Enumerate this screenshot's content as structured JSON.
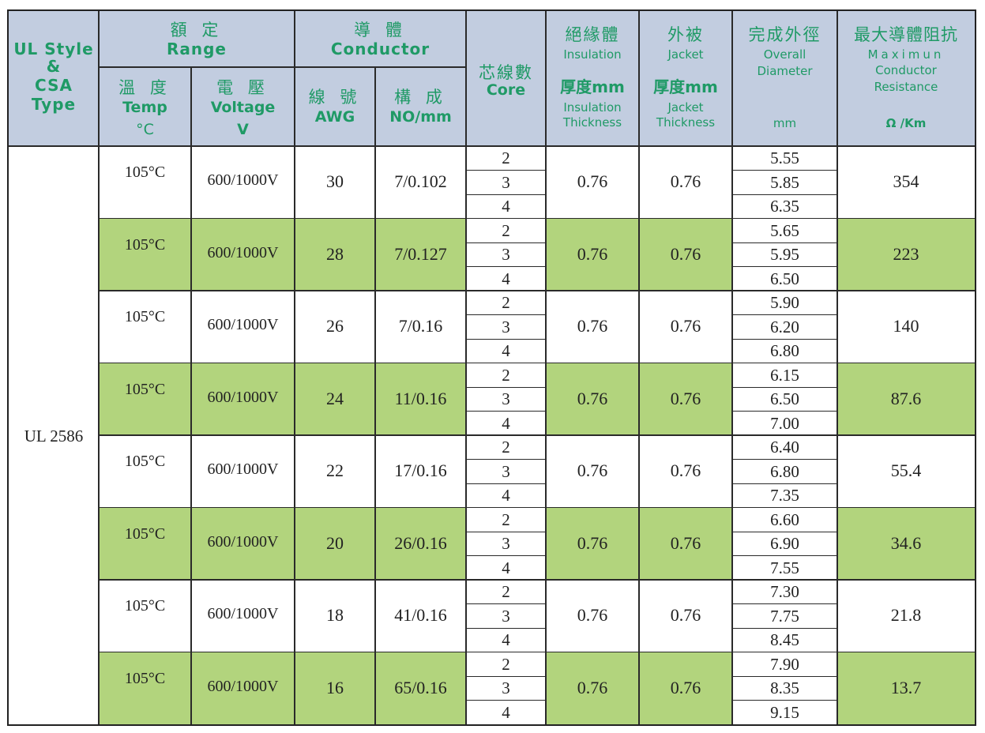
{
  "header": {
    "style_type": [
      "UL Style",
      "&",
      "CSA",
      "Type"
    ],
    "range": {
      "cn": "額 定",
      "en": "Range"
    },
    "conductor": {
      "cn": "導 體",
      "en": "Conductor"
    },
    "temp": {
      "cn": "溫 度",
      "en": "Temp",
      "unit": "°C"
    },
    "voltage": {
      "cn": "電 壓",
      "en": "Voltage",
      "unit": "V"
    },
    "awg": {
      "cn": "線 號",
      "en": "AWG"
    },
    "construction": {
      "cn": "構 成",
      "en": "NO/mm"
    },
    "core": {
      "cn": "芯線數",
      "en": "Core"
    },
    "insulation": {
      "cn": "絕緣體",
      "en": "Insulation",
      "thick_cn": "厚度mm",
      "thick_en_1": "Insulation",
      "thick_en_2": "Thickness"
    },
    "jacket": {
      "cn": "外被",
      "en": "Jacket",
      "thick_cn": "厚度mm",
      "thick_en_1": "Jacket",
      "thick_en_2": "Thickness"
    },
    "diameter": {
      "cn": "完成外徑",
      "en_1": "Overall",
      "en_2": "Diameter",
      "unit": "mm"
    },
    "resistance": {
      "cn": "最大導體阻抗",
      "en_1": "Maximun",
      "en_2": "Conductor",
      "en_3": "Resistance",
      "unit": "Ω /Km"
    }
  },
  "style": "UL 2586",
  "rows": [
    {
      "temp": "105°C",
      "voltage": "600/1000V",
      "awg": "30",
      "construction": "7/0.102",
      "cores": [
        "2",
        "3",
        "4"
      ],
      "insulation": "0.76",
      "jacket": "0.76",
      "diameters": [
        "5.55",
        "5.85",
        "6.35"
      ],
      "resistance": "354"
    },
    {
      "temp": "105°C",
      "voltage": "600/1000V",
      "awg": "28",
      "construction": "7/0.127",
      "cores": [
        "2",
        "3",
        "4"
      ],
      "insulation": "0.76",
      "jacket": "0.76",
      "diameters": [
        "5.65",
        "5.95",
        "6.50"
      ],
      "resistance": "223"
    },
    {
      "temp": "105°C",
      "voltage": "600/1000V",
      "awg": "26",
      "construction": "7/0.16",
      "cores": [
        "2",
        "3",
        "4"
      ],
      "insulation": "0.76",
      "jacket": "0.76",
      "diameters": [
        "5.90",
        "6.20",
        "6.80"
      ],
      "resistance": "140"
    },
    {
      "temp": "105°C",
      "voltage": "600/1000V",
      "awg": "24",
      "construction": "11/0.16",
      "cores": [
        "2",
        "3",
        "4"
      ],
      "insulation": "0.76",
      "jacket": "0.76",
      "diameters": [
        "6.15",
        "6.50",
        "7.00"
      ],
      "resistance": "87.6"
    },
    {
      "temp": "105°C",
      "voltage": "600/1000V",
      "awg": "22",
      "construction": "17/0.16",
      "cores": [
        "2",
        "3",
        "4"
      ],
      "insulation": "0.76",
      "jacket": "0.76",
      "diameters": [
        "6.40",
        "6.80",
        "7.35"
      ],
      "resistance": "55.4"
    },
    {
      "temp": "105°C",
      "voltage": "600/1000V",
      "awg": "20",
      "construction": "26/0.16",
      "cores": [
        "2",
        "3",
        "4"
      ],
      "insulation": "0.76",
      "jacket": "0.76",
      "diameters": [
        "6.60",
        "6.90",
        "7.55"
      ],
      "resistance": "34.6"
    },
    {
      "temp": "105°C",
      "voltage": "600/1000V",
      "awg": "18",
      "construction": "41/0.16",
      "cores": [
        "2",
        "3",
        "4"
      ],
      "insulation": "0.76",
      "jacket": "0.76",
      "diameters": [
        "7.30",
        "7.75",
        "8.45"
      ],
      "resistance": "21.8"
    },
    {
      "temp": "105°C",
      "voltage": "600/1000V",
      "awg": "16",
      "construction": "65/0.16",
      "cores": [
        "2",
        "3",
        "4"
      ],
      "insulation": "0.76",
      "jacket": "0.76",
      "diameters": [
        "7.90",
        "8.35",
        "9.15"
      ],
      "resistance": "13.7"
    }
  ],
  "colors": {
    "header_bg": "#c2cde0",
    "header_text": "#1f9a66",
    "highlight_row": "#b2d47d",
    "grid": "#2a2a2a"
  }
}
